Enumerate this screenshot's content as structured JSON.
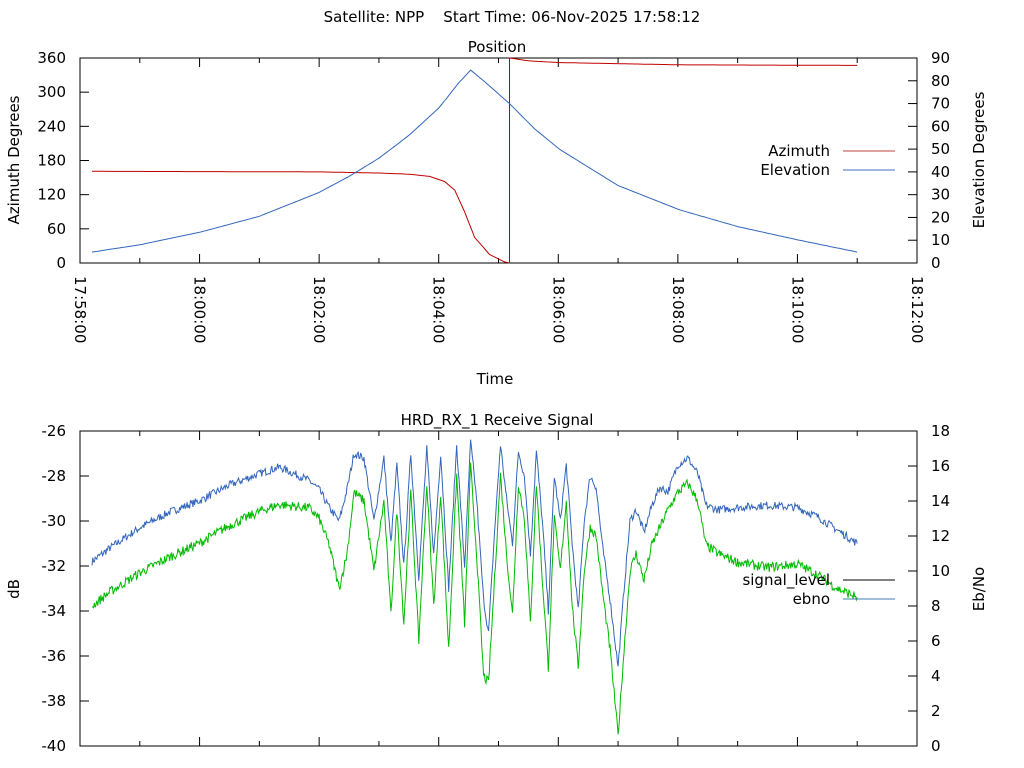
{
  "header": {
    "title": "Satellite: NPP    Start Time: 06-Nov-2025 17:58:12"
  },
  "colors": {
    "azimuth": "#c00000",
    "elevation": "#3366bb",
    "signal_level": "#3366bb",
    "ebno": "#00bb00",
    "legend_signal": "#000000",
    "legend_ebno": "#4a78b8"
  },
  "chart_data": [
    {
      "type": "line",
      "title": "Position",
      "xlabel": "Time",
      "ylabel": "Azimuth Degrees",
      "y2label": "Elevation Degrees",
      "x_unit": "seconds after 17:58:00",
      "xlim": [
        0,
        840
      ],
      "ylim": [
        0,
        360
      ],
      "y2lim": [
        0,
        90
      ],
      "xticks": [
        "17:58:00",
        "18:00:00",
        "18:02:00",
        "18:04:00",
        "18:06:00",
        "18:08:00",
        "18:10:00",
        "18:12:00"
      ],
      "yticks": [
        "0",
        "60",
        "120",
        "180",
        "240",
        "300",
        "360"
      ],
      "y2ticks": [
        "0",
        "10",
        "20",
        "30",
        "40",
        "50",
        "60",
        "70",
        "80",
        "90"
      ],
      "legend_position": "right",
      "series": [
        {
          "name": "Azimuth",
          "axis": "y",
          "points": [
            [
              12,
              161
            ],
            [
              240,
              160
            ],
            [
              300,
              158
            ],
            [
              330,
              156
            ],
            [
              351,
              152
            ],
            [
              366,
              143
            ],
            [
              376,
              128
            ],
            [
              386,
              90
            ],
            [
              396,
              45
            ],
            [
              411,
              15
            ],
            [
              426,
              2
            ],
            [
              431,
              0
            ],
            [
              431,
              360
            ],
            [
              450,
              355
            ],
            [
              481,
              352
            ],
            [
              602,
              348
            ],
            [
              780,
              347
            ]
          ]
        },
        {
          "name": "Elevation",
          "axis": "y2",
          "points": [
            [
              12,
              4.8
            ],
            [
              60,
              8
            ],
            [
              120,
              13.5
            ],
            [
              180,
              20.5
            ],
            [
              240,
              31
            ],
            [
              270,
              38
            ],
            [
              300,
              46
            ],
            [
              330,
              56
            ],
            [
              360,
              68
            ],
            [
              380,
              79
            ],
            [
              392,
              84.7
            ],
            [
              405,
              80
            ],
            [
              431,
              70
            ],
            [
              456,
              59
            ],
            [
              481,
              50
            ],
            [
              540,
              34
            ],
            [
              602,
              23.3
            ],
            [
              660,
              16
            ],
            [
              722,
              10
            ],
            [
              780,
              4.8
            ]
          ]
        }
      ]
    },
    {
      "type": "line",
      "title": "HRD_RX_1 Receive Signal",
      "ylabel": "dB",
      "y2label": "Eb/No",
      "x_unit": "seconds after 17:58:00",
      "xlim": [
        0,
        840
      ],
      "ylim": [
        -40,
        -26
      ],
      "y2lim": [
        0,
        18
      ],
      "yticks": [
        "-40",
        "-38",
        "-36",
        "-34",
        "-32",
        "-30",
        "-28",
        "-26"
      ],
      "y2ticks": [
        "0",
        "2",
        "4",
        "6",
        "8",
        "10",
        "12",
        "14",
        "16",
        "18"
      ],
      "legend_position": "right",
      "times": [
        12,
        30,
        60,
        90,
        120,
        150,
        180,
        200,
        230,
        240,
        250,
        260,
        268,
        275,
        285,
        295,
        305,
        312,
        318,
        325,
        332,
        340,
        348,
        355,
        362,
        370,
        378,
        386,
        392,
        398,
        405,
        410,
        416,
        422,
        428,
        434,
        440,
        446,
        452,
        458,
        464,
        470,
        476,
        482,
        488,
        494,
        500,
        506,
        512,
        518,
        524,
        532,
        540,
        546,
        552,
        558,
        566,
        574,
        582,
        590,
        600,
        610,
        620,
        628,
        640,
        660,
        690,
        720,
        740,
        760,
        780
      ],
      "series": [
        {
          "name": "signal_level",
          "axis": "y",
          "values": [
            -31.8,
            -31.2,
            -30.3,
            -29.6,
            -29.1,
            -28.4,
            -27.9,
            -27.6,
            -28.2,
            -28.6,
            -29.4,
            -30.0,
            -28.6,
            -27.0,
            -27.2,
            -30.0,
            -27.2,
            -31.0,
            -27.5,
            -32.0,
            -27.0,
            -32.5,
            -26.8,
            -31.5,
            -27.0,
            -33.0,
            -26.6,
            -32.0,
            -26.5,
            -29.0,
            -33.5,
            -35.0,
            -30.5,
            -26.6,
            -29.0,
            -31.0,
            -26.9,
            -28.0,
            -31.5,
            -26.9,
            -30.0,
            -34.0,
            -28.0,
            -30.0,
            -27.5,
            -31.0,
            -34.0,
            -30.0,
            -28.0,
            -28.5,
            -31.0,
            -33.5,
            -36.5,
            -33.0,
            -30.0,
            -29.5,
            -30.5,
            -29.3,
            -28.5,
            -28.7,
            -27.5,
            -27.2,
            -27.9,
            -29.3,
            -29.5,
            -29.4,
            -29.3,
            -29.4,
            -29.8,
            -30.4,
            -31.0
          ]
        },
        {
          "name": "ebno",
          "axis": "y2",
          "values": [
            8.0,
            8.8,
            9.9,
            10.8,
            11.6,
            12.6,
            13.4,
            13.8,
            13.6,
            13.0,
            11.5,
            9.0,
            11.0,
            14.5,
            14.0,
            10.0,
            14.0,
            7.5,
            13.5,
            7.0,
            14.5,
            6.0,
            15.0,
            8.0,
            14.5,
            5.5,
            15.5,
            7.0,
            16.0,
            11.0,
            4.0,
            3.6,
            9.5,
            15.5,
            11.0,
            7.5,
            15.0,
            13.0,
            7.0,
            15.0,
            9.5,
            4.5,
            13.0,
            10.0,
            14.0,
            8.0,
            4.5,
            10.0,
            12.5,
            12.0,
            9.0,
            5.5,
            0.6,
            5.5,
            10.0,
            11.0,
            9.5,
            11.5,
            12.5,
            13.5,
            14.5,
            15.0,
            14.0,
            11.5,
            11.0,
            10.5,
            10.2,
            10.4,
            9.8,
            9.0,
            8.5
          ]
        }
      ]
    }
  ]
}
